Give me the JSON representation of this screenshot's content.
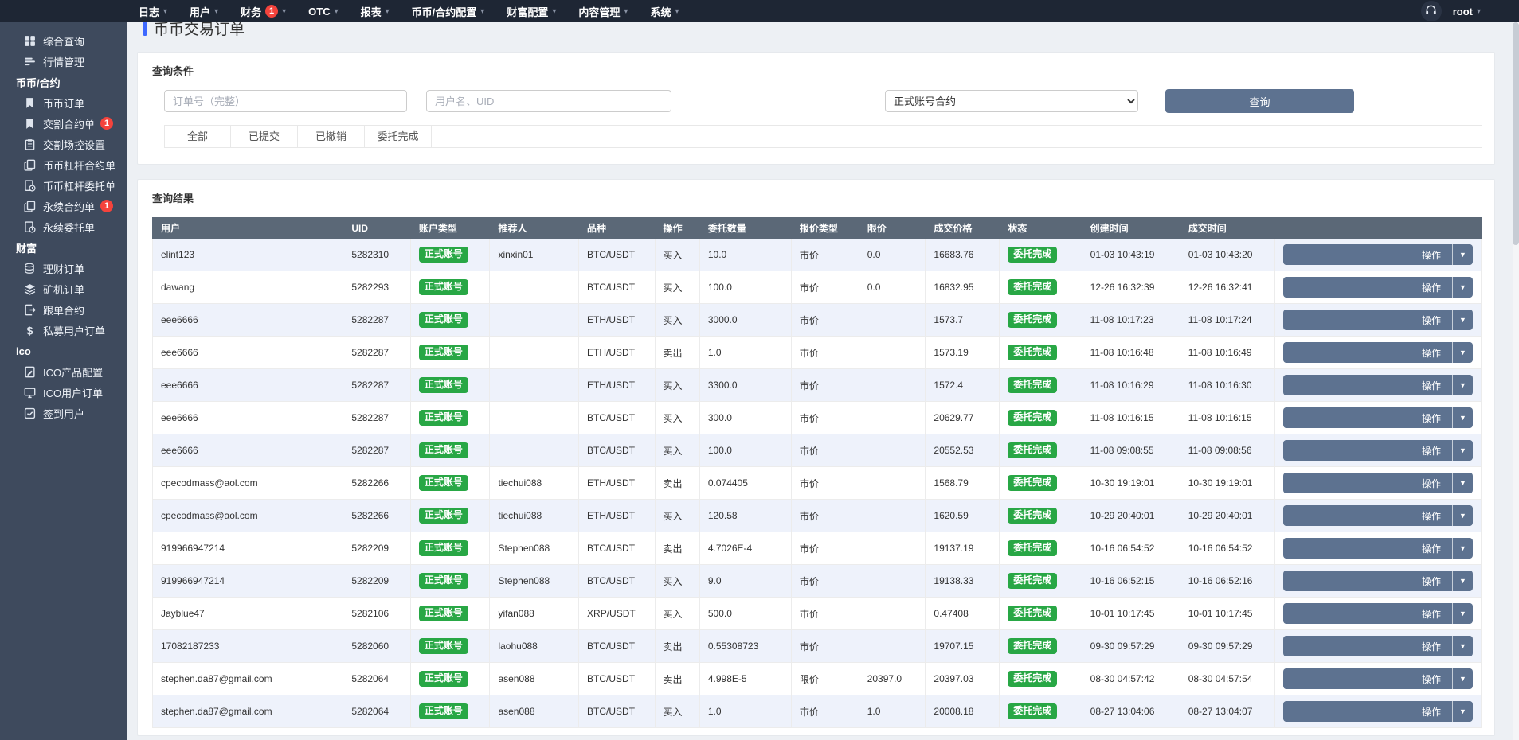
{
  "navbar": {
    "items": [
      {
        "label": "日志"
      },
      {
        "label": "用户"
      },
      {
        "label": "财务",
        "badge": "1"
      },
      {
        "label": "OTC"
      },
      {
        "label": "报表"
      },
      {
        "label": "币币/合约配置"
      },
      {
        "label": "财富配置"
      },
      {
        "label": "内容管理"
      },
      {
        "label": "系统"
      }
    ],
    "user": "root"
  },
  "sidebar": {
    "items": [
      {
        "type": "item",
        "icon": "grid-icon",
        "label": "综合查询"
      },
      {
        "type": "item",
        "icon": "chart-icon",
        "label": "行情管理"
      },
      {
        "type": "section",
        "label": "币币/合约"
      },
      {
        "type": "item",
        "icon": "bookmark-icon",
        "label": "币币订单"
      },
      {
        "type": "item",
        "icon": "bookmark-icon",
        "label": "交割合约单",
        "badge": "1"
      },
      {
        "type": "item",
        "icon": "clipboard-icon",
        "label": "交割场控设置"
      },
      {
        "type": "item",
        "icon": "copy-icon",
        "label": "币币杠杆合约单"
      },
      {
        "type": "item",
        "icon": "file-clock-icon",
        "label": "币币杠杆委托单"
      },
      {
        "type": "item",
        "icon": "copy-icon",
        "label": "永续合约单",
        "badge": "1"
      },
      {
        "type": "item",
        "icon": "file-clock-icon",
        "label": "永续委托单"
      },
      {
        "type": "section",
        "label": "财富"
      },
      {
        "type": "item",
        "icon": "coins-icon",
        "label": "理财订单"
      },
      {
        "type": "item",
        "icon": "layers-icon",
        "label": "矿机订单"
      },
      {
        "type": "item",
        "icon": "file-export-icon",
        "label": "跟单合约"
      },
      {
        "type": "item",
        "icon": "dollar-icon",
        "label": "私募用户订单"
      },
      {
        "type": "section",
        "label": "ico"
      },
      {
        "type": "item",
        "icon": "file-edit-icon",
        "label": "ICO产品配置"
      },
      {
        "type": "item",
        "icon": "monitor-icon",
        "label": "ICO用户订单"
      },
      {
        "type": "item",
        "icon": "check-edit-icon",
        "label": "签到用户"
      }
    ]
  },
  "page": {
    "title": "币币交易订单"
  },
  "search": {
    "panel_title": "查询条件",
    "order_placeholder": "订单号（完整）",
    "user_placeholder": "用户名、UID",
    "account_select_value": "正式账号合约",
    "search_button": "查询",
    "tabs": [
      "全部",
      "已提交",
      "已撤销",
      "委托完成"
    ]
  },
  "results": {
    "panel_title": "查询结果",
    "columns": [
      "用户",
      "UID",
      "账户类型",
      "推荐人",
      "品种",
      "操作",
      "委托数量",
      "报价类型",
      "限价",
      "成交价格",
      "状态",
      "创建时间",
      "成交时间",
      ""
    ],
    "account_badge": "正式账号",
    "status_badge": "委托完成",
    "action_button": "操作",
    "rows": [
      {
        "user": "elint123",
        "uid": "5282310",
        "referrer": "xinxin01",
        "symbol": "BTC/USDT",
        "side": "买入",
        "amount": "10.0",
        "price_type": "市价",
        "limit": "0.0",
        "deal_price": "16683.76",
        "created": "01-03 10:43:19",
        "dealt": "01-03 10:43:20"
      },
      {
        "user": "dawang",
        "uid": "5282293",
        "referrer": "",
        "symbol": "BTC/USDT",
        "side": "买入",
        "amount": "100.0",
        "price_type": "市价",
        "limit": "0.0",
        "deal_price": "16832.95",
        "created": "12-26 16:32:39",
        "dealt": "12-26 16:32:41"
      },
      {
        "user": "eee6666",
        "uid": "5282287",
        "referrer": "",
        "symbol": "ETH/USDT",
        "side": "买入",
        "amount": "3000.0",
        "price_type": "市价",
        "limit": "",
        "deal_price": "1573.7",
        "created": "11-08 10:17:23",
        "dealt": "11-08 10:17:24"
      },
      {
        "user": "eee6666",
        "uid": "5282287",
        "referrer": "",
        "symbol": "ETH/USDT",
        "side": "卖出",
        "amount": "1.0",
        "price_type": "市价",
        "limit": "",
        "deal_price": "1573.19",
        "created": "11-08 10:16:48",
        "dealt": "11-08 10:16:49"
      },
      {
        "user": "eee6666",
        "uid": "5282287",
        "referrer": "",
        "symbol": "ETH/USDT",
        "side": "买入",
        "amount": "3300.0",
        "price_type": "市价",
        "limit": "",
        "deal_price": "1572.4",
        "created": "11-08 10:16:29",
        "dealt": "11-08 10:16:30"
      },
      {
        "user": "eee6666",
        "uid": "5282287",
        "referrer": "",
        "symbol": "BTC/USDT",
        "side": "买入",
        "amount": "300.0",
        "price_type": "市价",
        "limit": "",
        "deal_price": "20629.77",
        "created": "11-08 10:16:15",
        "dealt": "11-08 10:16:15"
      },
      {
        "user": "eee6666",
        "uid": "5282287",
        "referrer": "",
        "symbol": "BTC/USDT",
        "side": "买入",
        "amount": "100.0",
        "price_type": "市价",
        "limit": "",
        "deal_price": "20552.53",
        "created": "11-08 09:08:55",
        "dealt": "11-08 09:08:56"
      },
      {
        "user": "cpecodmass@aol.com",
        "uid": "5282266",
        "referrer": "tiechui088",
        "symbol": "ETH/USDT",
        "side": "卖出",
        "amount": "0.074405",
        "price_type": "市价",
        "limit": "",
        "deal_price": "1568.79",
        "created": "10-30 19:19:01",
        "dealt": "10-30 19:19:01"
      },
      {
        "user": "cpecodmass@aol.com",
        "uid": "5282266",
        "referrer": "tiechui088",
        "symbol": "ETH/USDT",
        "side": "买入",
        "amount": "120.58",
        "price_type": "市价",
        "limit": "",
        "deal_price": "1620.59",
        "created": "10-29 20:40:01",
        "dealt": "10-29 20:40:01"
      },
      {
        "user": "919966947214",
        "uid": "5282209",
        "referrer": "Stephen088",
        "symbol": "BTC/USDT",
        "side": "卖出",
        "amount": "4.7026E-4",
        "price_type": "市价",
        "limit": "",
        "deal_price": "19137.19",
        "created": "10-16 06:54:52",
        "dealt": "10-16 06:54:52"
      },
      {
        "user": "919966947214",
        "uid": "5282209",
        "referrer": "Stephen088",
        "symbol": "BTC/USDT",
        "side": "买入",
        "amount": "9.0",
        "price_type": "市价",
        "limit": "",
        "deal_price": "19138.33",
        "created": "10-16 06:52:15",
        "dealt": "10-16 06:52:16"
      },
      {
        "user": "Jayblue47",
        "uid": "5282106",
        "referrer": "yifan088",
        "symbol": "XRP/USDT",
        "side": "买入",
        "amount": "500.0",
        "price_type": "市价",
        "limit": "",
        "deal_price": "0.47408",
        "created": "10-01 10:17:45",
        "dealt": "10-01 10:17:45"
      },
      {
        "user": "17082187233",
        "uid": "5282060",
        "referrer": "laohu088",
        "symbol": "BTC/USDT",
        "side": "卖出",
        "amount": "0.55308723",
        "price_type": "市价",
        "limit": "",
        "deal_price": "19707.15",
        "created": "09-30 09:57:29",
        "dealt": "09-30 09:57:29"
      },
      {
        "user": "stephen.da87@gmail.com",
        "uid": "5282064",
        "referrer": "asen088",
        "symbol": "BTC/USDT",
        "side": "卖出",
        "amount": "4.998E-5",
        "price_type": "限价",
        "limit": "20397.0",
        "deal_price": "20397.03",
        "created": "08-30 04:57:42",
        "dealt": "08-30 04:57:54"
      },
      {
        "user": "stephen.da87@gmail.com",
        "uid": "5282064",
        "referrer": "asen088",
        "symbol": "BTC/USDT",
        "side": "买入",
        "amount": "1.0",
        "price_type": "市价",
        "limit": "1.0",
        "deal_price": "20008.18",
        "created": "08-27 13:04:06",
        "dealt": "08-27 13:04:07"
      }
    ]
  }
}
